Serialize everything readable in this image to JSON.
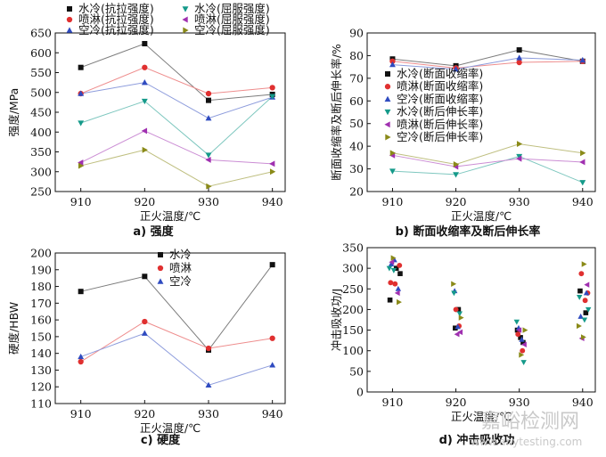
{
  "chart_data": [
    {
      "id": "a",
      "type": "line",
      "caption": "a) 强度",
      "xlabel": "正火温度/℃",
      "ylabel": "强度/MPa",
      "x": [
        910,
        920,
        930,
        940
      ],
      "xticks": [
        "910",
        "920",
        "930",
        "940"
      ],
      "ylim": [
        250,
        650
      ],
      "yticks": [
        250,
        300,
        350,
        400,
        450,
        500,
        550,
        600,
        650
      ],
      "legend_columns": 2,
      "series": [
        {
          "name": "水冷(抗拉强度)",
          "marker": "square",
          "color": "#111111",
          "values": [
            563,
            623,
            480,
            495
          ]
        },
        {
          "name": "喷淋(抗拉强度)",
          "marker": "circle",
          "color": "#e03030",
          "values": [
            497,
            563,
            497,
            512
          ]
        },
        {
          "name": "空冷(抗拉强度)",
          "marker": "triangle-up",
          "color": "#2f4bc0",
          "values": [
            497,
            525,
            435,
            488
          ]
        },
        {
          "name": "水冷(屈服强度)",
          "marker": "triangle-down",
          "color": "#159a8a",
          "values": [
            423,
            478,
            342,
            490
          ]
        },
        {
          "name": "喷淋(屈服强度)",
          "marker": "triangle-left",
          "color": "#a030b0",
          "values": [
            323,
            403,
            330,
            320
          ]
        },
        {
          "name": "空冷(屈服强度)",
          "marker": "triangle-right",
          "color": "#8a8a18",
          "values": [
            315,
            355,
            263,
            300
          ]
        }
      ]
    },
    {
      "id": "b",
      "type": "line",
      "caption": "b) 断面收缩率及断后伸长率",
      "xlabel": "正火温度/℃",
      "ylabel": "断面收缩率及断后伸长率/%",
      "x": [
        910,
        920,
        930,
        940
      ],
      "xticks": [
        "910",
        "920",
        "930",
        "940"
      ],
      "ylim": [
        20,
        90
      ],
      "yticks": [
        20,
        30,
        40,
        50,
        60,
        70,
        80,
        90
      ],
      "legend_columns": 1,
      "series": [
        {
          "name": "水冷(断面收缩率)",
          "marker": "square",
          "color": "#111111",
          "values": [
            78.5,
            75.5,
            82.5,
            77.5
          ]
        },
        {
          "name": "喷淋(断面收缩率)",
          "marker": "circle",
          "color": "#e03030",
          "values": [
            77.5,
            74.5,
            77,
            77.5
          ]
        },
        {
          "name": "空冷(断面收缩率)",
          "marker": "triangle-up",
          "color": "#2f4bc0",
          "values": [
            76,
            74,
            79,
            78
          ]
        },
        {
          "name": "水冷(断后伸长率)",
          "marker": "triangle-down",
          "color": "#159a8a",
          "values": [
            29,
            27.5,
            35.5,
            24
          ]
        },
        {
          "name": "喷淋(断后伸长率)",
          "marker": "triangle-left",
          "color": "#a030b0",
          "values": [
            36,
            31,
            34.5,
            33
          ]
        },
        {
          "name": "空冷(断后伸长率)",
          "marker": "triangle-right",
          "color": "#8a8a18",
          "values": [
            37,
            32,
            41,
            37
          ]
        }
      ]
    },
    {
      "id": "c",
      "type": "line",
      "caption": "c) 硬度",
      "xlabel": "正火温度/℃",
      "ylabel": "硬度/HBW",
      "x": [
        910,
        920,
        930,
        940
      ],
      "xticks": [
        "910",
        "920",
        "930",
        "940"
      ],
      "ylim": [
        110,
        200
      ],
      "yticks": [
        110,
        120,
        130,
        140,
        150,
        160,
        170,
        180,
        190,
        200
      ],
      "legend_columns": 1,
      "series": [
        {
          "name": "水冷",
          "marker": "square",
          "color": "#111111",
          "values": [
            177,
            186,
            142,
            193
          ]
        },
        {
          "name": "喷淋",
          "marker": "circle",
          "color": "#e03030",
          "values": [
            135,
            159,
            143,
            149
          ]
        },
        {
          "name": "空冷",
          "marker": "triangle-up",
          "color": "#2f4bc0",
          "values": [
            138,
            152,
            121,
            133
          ]
        }
      ]
    },
    {
      "id": "d",
      "type": "scatter",
      "caption": "d) 冲击吸收功",
      "xlabel": "正火温度/℃",
      "ylabel": "冲击吸收功/J",
      "x": [
        910,
        920,
        930,
        940
      ],
      "xticks": [
        "910",
        "920",
        "930",
        "940"
      ],
      "ylim": [
        0,
        350
      ],
      "yticks": [
        0,
        50,
        100,
        150,
        200,
        250,
        300,
        350
      ],
      "series": [
        {
          "marker": "square",
          "color": "#111111",
          "points": [
            [
              909.6,
              223
            ],
            [
              910.6,
              300
            ],
            [
              911.2,
              287
            ],
            [
              919.9,
              155
            ],
            [
              920.4,
              200
            ],
            [
              929.7,
              150
            ],
            [
              930.2,
              132
            ],
            [
              930.6,
              120
            ],
            [
              939.6,
              245
            ],
            [
              940.5,
              192
            ]
          ]
        },
        {
          "marker": "circle",
          "color": "#e03030",
          "points": [
            [
              909.7,
              265
            ],
            [
              910.4,
              262
            ],
            [
              911.1,
              307
            ],
            [
              920.0,
              200
            ],
            [
              920.5,
              160
            ],
            [
              929.8,
              140
            ],
            [
              930.5,
              100
            ],
            [
              939.8,
              287
            ],
            [
              940.4,
              222
            ],
            [
              940.8,
              240
            ]
          ]
        },
        {
          "marker": "triangle-up",
          "color": "#2f4bc0",
          "points": [
            [
              909.8,
              310
            ],
            [
              910.3,
              320
            ],
            [
              910.9,
              250
            ],
            [
              919.8,
              245
            ],
            [
              920.3,
              158
            ],
            [
              929.9,
              155
            ],
            [
              930.4,
              127
            ],
            [
              939.7,
              183
            ],
            [
              940.6,
              240
            ]
          ]
        },
        {
          "marker": "triangle-down",
          "color": "#159a8a",
          "points": [
            [
              909.5,
              300
            ],
            [
              910.2,
              295
            ],
            [
              919.7,
              240
            ],
            [
              920.6,
              190
            ],
            [
              929.6,
              170
            ],
            [
              930.7,
              72
            ],
            [
              939.5,
              230
            ],
            [
              940.3,
              175
            ],
            [
              940.9,
              200
            ]
          ]
        },
        {
          "marker": "triangle-left",
          "color": "#a030b0",
          "points": [
            [
              909.9,
              315
            ],
            [
              910.8,
              240
            ],
            [
              920.2,
              140
            ],
            [
              920.7,
              145
            ],
            [
              930.0,
              150
            ],
            [
              930.8,
              115
            ],
            [
              939.9,
              130
            ],
            [
              940.7,
              260
            ]
          ]
        },
        {
          "marker": "triangle-right",
          "color": "#8a8a18",
          "points": [
            [
              910.1,
              325
            ],
            [
              911.0,
              218
            ],
            [
              919.6,
              262
            ],
            [
              920.8,
              180
            ],
            [
              930.3,
              90
            ],
            [
              930.9,
              150
            ],
            [
              940.2,
              310
            ],
            [
              939.4,
              160
            ],
            [
              940.1,
              133
            ]
          ]
        }
      ]
    }
  ],
  "watermark": {
    "text_cn": "嘉峪检测网",
    "text_en": "www.anytesting.com"
  }
}
